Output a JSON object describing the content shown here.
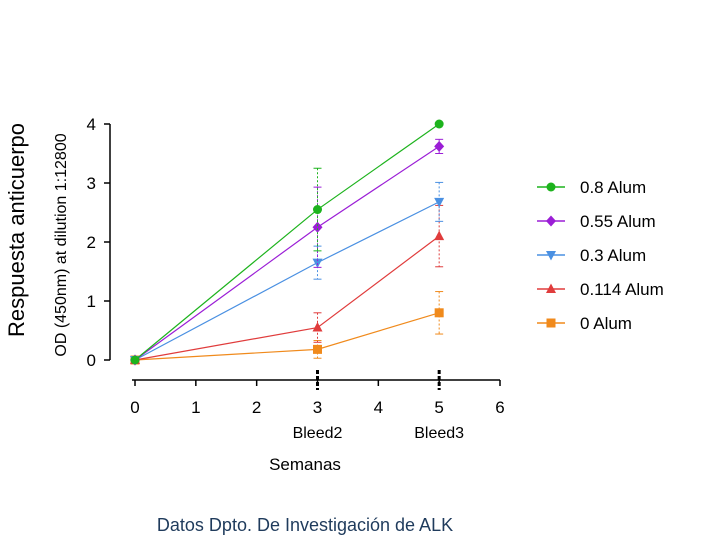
{
  "chart_data": {
    "type": "line",
    "title": "",
    "ylabel_outer": "Respuesta anticuerpo",
    "ylabel": "OD (450nm) at dilution 1:12800",
    "xlabel": "Semanas",
    "xlim": [
      0,
      6
    ],
    "ylim": [
      0,
      4
    ],
    "xticks": [
      0,
      1,
      2,
      3,
      4,
      5,
      6
    ],
    "yticks": [
      0,
      1,
      2,
      3,
      4
    ],
    "x_annotations": [
      {
        "x": 3,
        "label": "Bleed2"
      },
      {
        "x": 5,
        "label": "Bleed3"
      }
    ],
    "x": [
      0,
      3,
      5
    ],
    "legend_position": "right",
    "series": [
      {
        "name": "0.8 Alum",
        "color": "#1db31d",
        "marker": "circle",
        "values": [
          0,
          2.55,
          4.0
        ],
        "errors": [
          0,
          0.7,
          0
        ]
      },
      {
        "name": "0.55 Alum",
        "color": "#9b1ed6",
        "marker": "diamond",
        "values": [
          0,
          2.25,
          3.62
        ],
        "errors": [
          0,
          0.68,
          0.12
        ]
      },
      {
        "name": "0.3 Alum",
        "color": "#4a90e2",
        "marker": "triangle-down",
        "values": [
          0,
          1.65,
          2.68
        ],
        "errors": [
          0,
          0.28,
          0.33
        ]
      },
      {
        "name": "0.114 Alum",
        "color": "#e03c3c",
        "marker": "triangle-up",
        "values": [
          0,
          0.55,
          2.1
        ],
        "errors": [
          0,
          0.25,
          0.52
        ]
      },
      {
        "name": "0 Alum",
        "color": "#f08a1c",
        "marker": "square",
        "values": [
          0,
          0.18,
          0.8
        ],
        "errors": [
          0,
          0.15,
          0.36
        ]
      }
    ]
  },
  "caption": "Datos Dpto. De Investigación de ALK"
}
